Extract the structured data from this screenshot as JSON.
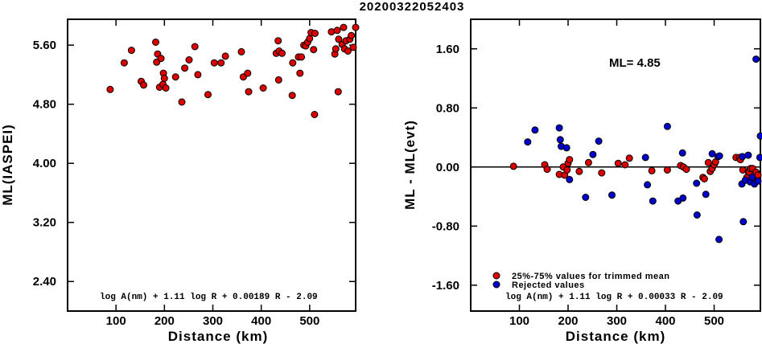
{
  "title": "20200322052403",
  "chart_data": [
    {
      "type": "scatter",
      "xlabel": "Distance (km)",
      "ylabel": "ML(IASPEI)",
      "xlim": [
        0,
        595
      ],
      "ylim": [
        2.0,
        5.95
      ],
      "xticks": [
        "100",
        "200",
        "300",
        "400",
        "500"
      ],
      "xtick_values": [
        100,
        200,
        300,
        400,
        500
      ],
      "yticks": [
        "2.40",
        "3.20",
        "4.00",
        "4.80",
        "5.60"
      ],
      "ytick_values": [
        2.4,
        3.2,
        4.0,
        4.8,
        5.6
      ],
      "annotation": "log A(nm) + 1.11 log R + 0.00189 R - 2.09",
      "series": [
        {
          "color": "#dd0000",
          "points": [
            [
              88,
              5.0
            ],
            [
              117,
              5.36
            ],
            [
              132,
              5.53
            ],
            [
              152,
              5.11
            ],
            [
              157,
              5.06
            ],
            [
              182,
              5.64
            ],
            [
              184,
              5.37
            ],
            [
              186,
              5.48
            ],
            [
              190,
              5.03
            ],
            [
              193,
              5.42
            ],
            [
              197,
              5.07
            ],
            [
              198,
              5.22
            ],
            [
              200,
              5.15
            ],
            [
              203,
              5.02
            ],
            [
              223,
              5.17
            ],
            [
              236,
              4.83
            ],
            [
              242,
              5.29
            ],
            [
              251,
              5.4
            ],
            [
              263,
              5.58
            ],
            [
              269,
              5.2
            ],
            [
              290,
              4.93
            ],
            [
              303,
              5.36
            ],
            [
              317,
              5.36
            ],
            [
              326,
              5.45
            ],
            [
              359,
              5.51
            ],
            [
              363,
              5.17
            ],
            [
              372,
              5.22
            ],
            [
              374,
              4.97
            ],
            [
              404,
              5.02
            ],
            [
              431,
              5.49
            ],
            [
              435,
              5.66
            ],
            [
              436,
              5.13
            ],
            [
              437,
              5.52
            ],
            [
              443,
              5.49
            ],
            [
              464,
              4.92
            ],
            [
              465,
              5.36
            ],
            [
              477,
              5.44
            ],
            [
              480,
              5.22
            ],
            [
              483,
              5.44
            ],
            [
              488,
              5.6
            ],
            [
              492,
              5.59
            ],
            [
              496,
              5.64
            ],
            [
              500,
              5.69
            ],
            [
              503,
              5.77
            ],
            [
              508,
              5.54
            ],
            [
              510,
              4.66
            ],
            [
              511,
              5.76
            ],
            [
              545,
              5.78
            ],
            [
              552,
              5.48
            ],
            [
              554,
              5.55
            ],
            [
              557,
              5.8
            ],
            [
              559,
              4.97
            ],
            [
              560,
              5.68
            ],
            [
              567,
              5.61
            ],
            [
              570,
              5.84
            ],
            [
              572,
              5.55
            ],
            [
              575,
              5.66
            ],
            [
              579,
              5.52
            ],
            [
              583,
              5.68
            ],
            [
              586,
              5.73
            ],
            [
              590,
              5.57
            ],
            [
              595,
              5.84
            ]
          ]
        }
      ]
    },
    {
      "type": "scatter",
      "xlabel": "Distance (km)",
      "ylabel": "ML - ML(evt)",
      "xlim": [
        0,
        595
      ],
      "ylim": [
        -1.95,
        2.0
      ],
      "xticks": [
        "100",
        "200",
        "300",
        "400",
        "500"
      ],
      "xtick_values": [
        100,
        200,
        300,
        400,
        500
      ],
      "yticks": [
        "-1.60",
        "-0.80",
        "0.00",
        "0.80",
        "1.60"
      ],
      "ytick_values": [
        -1.6,
        -0.8,
        0.0,
        0.8,
        1.6
      ],
      "ml_label": "ML= 4.85",
      "reference_line": 0.0,
      "annotation": "log A(nm) + 1.11 log R + 0.00033 R - 2.09",
      "legend": [
        {
          "label": "25%-75% values for trimmed mean",
          "color": "#dd0000"
        },
        {
          "label": "Rejected values",
          "color": "#0000cc"
        }
      ],
      "series": [
        {
          "name": "25%-75% values for trimmed mean",
          "color": "#dd0000",
          "points": [
            [
              88,
              0.01
            ],
            [
              152,
              0.03
            ],
            [
              157,
              -0.03
            ],
            [
              182,
              -0.1
            ],
            [
              190,
              0.0
            ],
            [
              193,
              -0.11
            ],
            [
              198,
              -0.04
            ],
            [
              200,
              0.05
            ],
            [
              203,
              0.1
            ],
            [
              223,
              -0.06
            ],
            [
              242,
              0.06
            ],
            [
              269,
              -0.08
            ],
            [
              303,
              0.05
            ],
            [
              317,
              0.03
            ],
            [
              326,
              0.12
            ],
            [
              372,
              -0.05
            ],
            [
              404,
              -0.04
            ],
            [
              431,
              0.02
            ],
            [
              437,
              0.0
            ],
            [
              443,
              -0.03
            ],
            [
              477,
              -0.14
            ],
            [
              480,
              -0.16
            ],
            [
              488,
              0.06
            ],
            [
              492,
              -0.06
            ],
            [
              496,
              -0.02
            ],
            [
              500,
              0.03
            ],
            [
              503,
              0.07
            ],
            [
              545,
              0.13
            ],
            [
              552,
              0.13
            ],
            [
              554,
              0.1
            ],
            [
              559,
              -0.04
            ],
            [
              567,
              -0.14
            ],
            [
              570,
              -0.06
            ],
            [
              572,
              -0.07
            ],
            [
              575,
              -0.02
            ],
            [
              579,
              -0.02
            ],
            [
              583,
              -0.16
            ],
            [
              586,
              -0.07
            ],
            [
              590,
              -0.11
            ]
          ]
        },
        {
          "name": "Rejected values",
          "color": "#0000cc",
          "points": [
            [
              117,
              0.34
            ],
            [
              132,
              0.5
            ],
            [
              182,
              0.53
            ],
            [
              184,
              0.37
            ],
            [
              186,
              0.28
            ],
            [
              197,
              0.26
            ],
            [
              203,
              -0.17
            ],
            [
              236,
              -0.41
            ],
            [
              251,
              0.17
            ],
            [
              263,
              0.35
            ],
            [
              290,
              -0.38
            ],
            [
              359,
              0.13
            ],
            [
              363,
              -0.24
            ],
            [
              374,
              -0.46
            ],
            [
              404,
              0.55
            ],
            [
              426,
              -0.46
            ],
            [
              435,
              0.19
            ],
            [
              436,
              -0.42
            ],
            [
              464,
              -0.22
            ],
            [
              465,
              -0.65
            ],
            [
              483,
              -0.37
            ],
            [
              496,
              0.18
            ],
            [
              508,
              0.14
            ],
            [
              510,
              -0.98
            ],
            [
              511,
              0.15
            ],
            [
              557,
              -0.23
            ],
            [
              558,
              0.14
            ],
            [
              560,
              -0.74
            ],
            [
              564,
              -0.18
            ],
            [
              570,
              0.16
            ],
            [
              574,
              -0.2
            ],
            [
              578,
              -0.14
            ],
            [
              583,
              -0.23
            ],
            [
              586,
              1.46
            ],
            [
              590,
              -0.19
            ],
            [
              594,
              0.13
            ],
            [
              595,
              0.42
            ]
          ]
        }
      ]
    }
  ]
}
